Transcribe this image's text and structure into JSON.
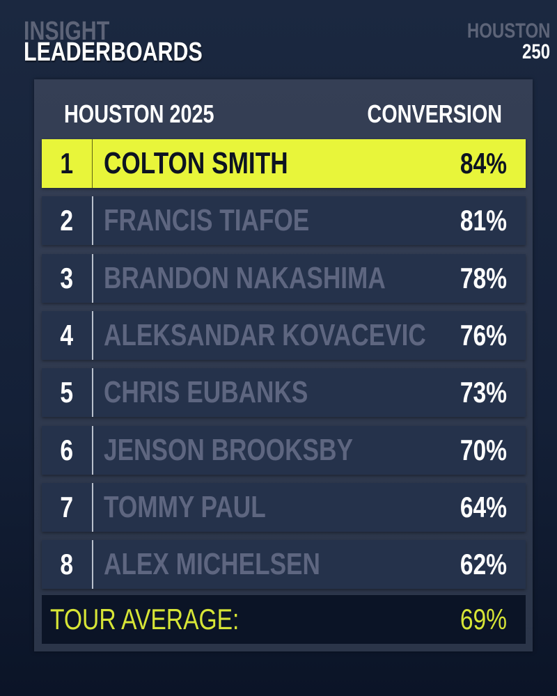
{
  "brand": {
    "line1": "INSIGHT",
    "line2": "LEADERBOARDS"
  },
  "event": {
    "line1": "HOUSTON",
    "line2": "250"
  },
  "table": {
    "header_left": "HOUSTON 2025",
    "header_right": "CONVERSION",
    "rows": [
      {
        "rank": "1",
        "name": "COLTON SMITH",
        "value": "84%"
      },
      {
        "rank": "2",
        "name": "FRANCIS TIAFOE",
        "value": "81%"
      },
      {
        "rank": "3",
        "name": "BRANDON NAKASHIMA",
        "value": "78%"
      },
      {
        "rank": "4",
        "name": "ALEKSANDAR KOVACEVIC",
        "value": "76%"
      },
      {
        "rank": "5",
        "name": "CHRIS EUBANKS",
        "value": "73%"
      },
      {
        "rank": "6",
        "name": "JENSON BROOKSBY",
        "value": "70%"
      },
      {
        "rank": "7",
        "name": "TOMMY PAUL",
        "value": "64%"
      },
      {
        "rank": "8",
        "name": "ALEX MICHELSEN",
        "value": "62%"
      }
    ],
    "average_label": "TOUR AVERAGE:",
    "average_value": "69%"
  },
  "colors": {
    "highlight": "#e8f53a",
    "row": "#25324b",
    "average_text": "#d7e536",
    "background": "#1b2840"
  }
}
